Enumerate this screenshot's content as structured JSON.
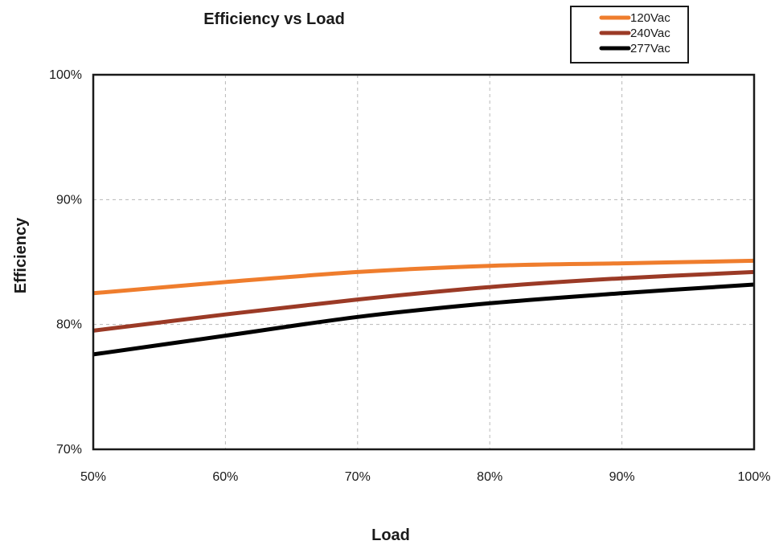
{
  "chart_data": {
    "type": "line",
    "title": "Efficiency vs Load",
    "xlabel": "Load",
    "ylabel": "Efficiency",
    "xlim": [
      50,
      100
    ],
    "ylim": [
      70,
      100
    ],
    "x_ticks": [
      50,
      60,
      70,
      80,
      90,
      100
    ],
    "x_tick_labels": [
      "50%",
      "60%",
      "70%",
      "80%",
      "90%",
      "100%"
    ],
    "y_ticks": [
      70,
      80,
      90,
      100
    ],
    "y_tick_labels": [
      "70%",
      "80%",
      "90%",
      "100%"
    ],
    "grid": true,
    "legend_position": "top-right",
    "x": [
      50,
      60,
      70,
      80,
      90,
      100
    ],
    "series": [
      {
        "name": "120Vac",
        "color": "#ef7d2d",
        "values": [
          82.5,
          83.4,
          84.2,
          84.7,
          84.9,
          85.1
        ]
      },
      {
        "name": "240Vac",
        "color": "#9b3a26",
        "values": [
          79.5,
          80.8,
          82.0,
          83.0,
          83.7,
          84.2
        ]
      },
      {
        "name": "277Vac",
        "color": "#000000",
        "values": [
          77.6,
          79.1,
          80.6,
          81.7,
          82.5,
          83.2
        ]
      }
    ]
  }
}
